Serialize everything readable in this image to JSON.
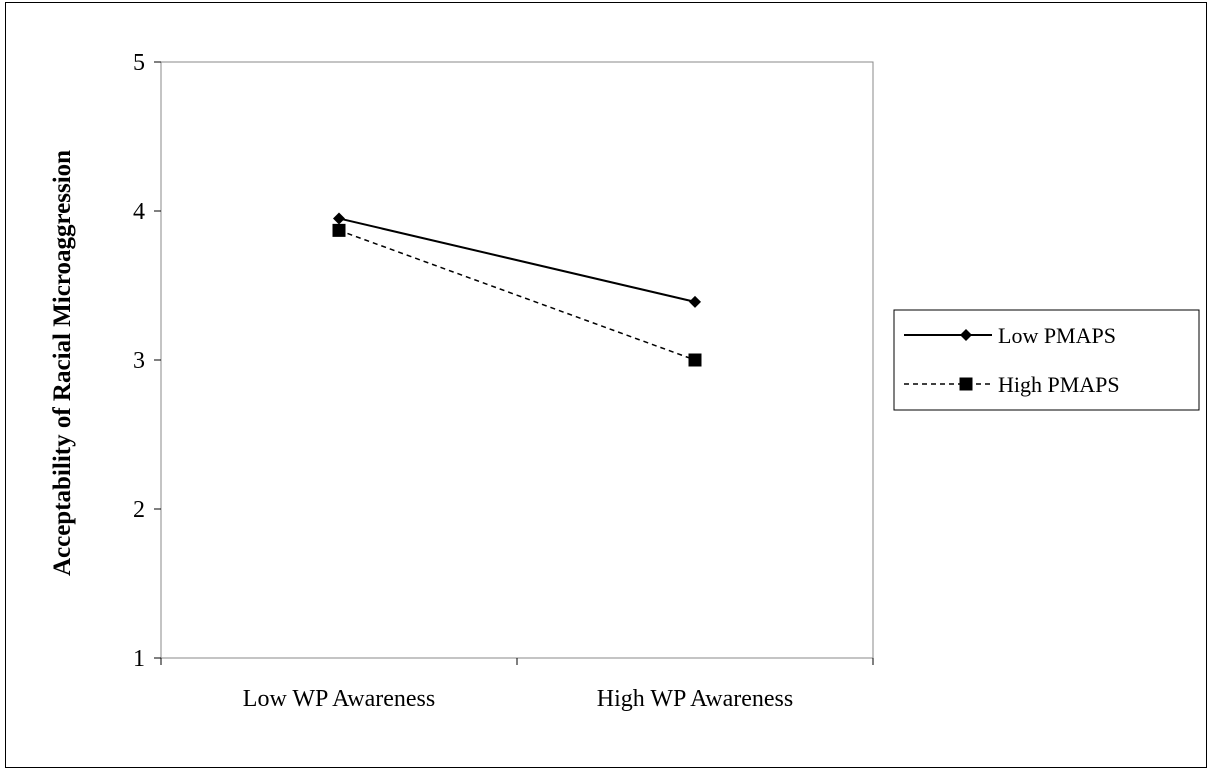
{
  "chart_data": {
    "type": "line",
    "title": "",
    "xlabel": "",
    "ylabel": "Acceptability of Racial Microaggression",
    "categories": [
      "Low WP Awareness",
      "High WP Awareness"
    ],
    "ylim": [
      1,
      5
    ],
    "yticks": [
      1,
      2,
      3,
      4,
      5
    ],
    "grid": false,
    "legend_position": "right",
    "series": [
      {
        "name": "Low PMAPS",
        "values": [
          3.95,
          3.39
        ],
        "marker": "diamond",
        "line_style": "solid",
        "color": "#000000"
      },
      {
        "name": "High PMAPS",
        "values": [
          3.87,
          3.0
        ],
        "marker": "square",
        "line_style": "dashed",
        "color": "#000000"
      }
    ]
  }
}
